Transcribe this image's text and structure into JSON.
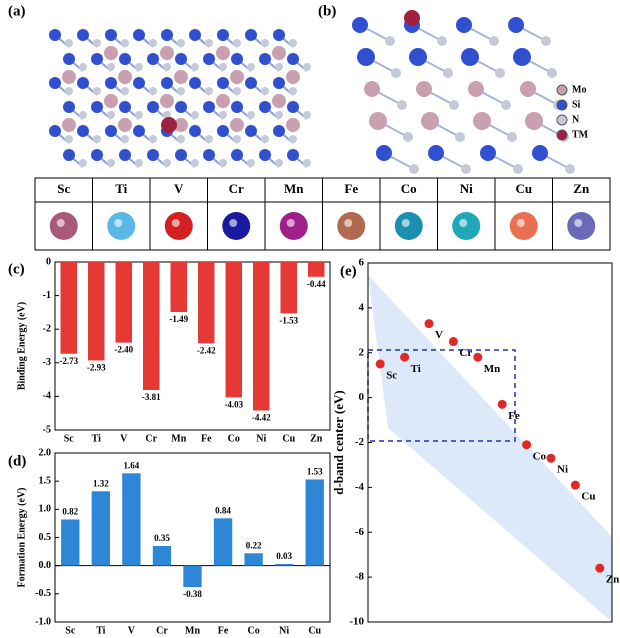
{
  "panels": {
    "a": "(a)",
    "b": "(b)"
  },
  "structure_legend": [
    {
      "name": "Mo",
      "color": "#c8a0b0"
    },
    {
      "name": "Si",
      "color": "#3050d0"
    },
    {
      "name": "N",
      "color": "#c4cad8"
    },
    {
      "name": "TM",
      "color": "#a02040"
    }
  ],
  "elements": [
    {
      "name": "Sc",
      "color": "#a85a78"
    },
    {
      "name": "Ti",
      "color": "#5ab8e8"
    },
    {
      "name": "V",
      "color": "#d42020"
    },
    {
      "name": "Cr",
      "color": "#1a1aa0"
    },
    {
      "name": "Mn",
      "color": "#a0208a"
    },
    {
      "name": "Fe",
      "color": "#b06a50"
    },
    {
      "name": "Co",
      "color": "#1a8fb0"
    },
    {
      "name": "Ni",
      "color": "#20a8b8"
    },
    {
      "name": "Cu",
      "color": "#e87050"
    },
    {
      "name": "Zn",
      "color": "#6a6ab8"
    }
  ],
  "chart_data": [
    {
      "type": "bar",
      "label": "(c)",
      "y_label": "Binding Energy (eV)",
      "color": "#e53935",
      "categories": [
        "Sc",
        "Ti",
        "V",
        "Cr",
        "Mn",
        "Fe",
        "Co",
        "Ni",
        "Cu",
        "Zn"
      ],
      "values": [
        -2.73,
        -2.93,
        -2.4,
        -3.81,
        -1.49,
        -2.42,
        -4.03,
        -4.42,
        -1.53,
        -0.44
      ],
      "value_labels": [
        "-2.73",
        "-2.93",
        "-2.40",
        "-3.81",
        "-1.49",
        "-2.42",
        "-4.03",
        "-4.42",
        "-1.53",
        "-0.44"
      ],
      "ylim": [
        -5,
        0
      ],
      "yticks": [
        0,
        -1,
        -2,
        -3,
        -4,
        -5
      ]
    },
    {
      "type": "bar",
      "label": "(d)",
      "y_label": "Formation Energy (eV)",
      "color": "#2e86d6",
      "categories": [
        "Sc",
        "Ti",
        "V",
        "Cr",
        "Mn",
        "Fe",
        "Co",
        "Ni",
        "Cu"
      ],
      "values": [
        0.82,
        1.32,
        1.64,
        0.35,
        -0.38,
        0.84,
        0.22,
        0.03,
        1.53
      ],
      "value_labels": [
        "0.82",
        "1.32",
        "1.64",
        "0.35",
        "-0.38",
        "0.84",
        "0.22",
        "0.03",
        "1.53"
      ],
      "ylim": [
        -1,
        2
      ],
      "yticks": [
        {
          "value": -1,
          "label": "-1.0"
        },
        {
          "value": -0.5,
          "label": "-0.5"
        },
        {
          "value": 0,
          "label": "0.0"
        },
        {
          "value": 0.5,
          "label": "0.5"
        },
        {
          "value": 1,
          "label": "1.0"
        },
        {
          "value": 1.5,
          "label": "1.5"
        },
        {
          "value": 2,
          "label": "2.0"
        }
      ]
    },
    {
      "type": "scatter",
      "label": "(e)",
      "y_label": "d-band center (eV)",
      "color": "#e02828",
      "categories": [
        "Sc",
        "Ti",
        "V",
        "Cr",
        "Mn",
        "Fe",
        "Co",
        "Ni",
        "Cu",
        "Zn"
      ],
      "values": [
        1.5,
        1.8,
        3.3,
        2.5,
        1.8,
        -0.3,
        -2.1,
        -2.7,
        -3.9,
        -7.6
      ],
      "ylim": [
        -10,
        6
      ],
      "yticks": [
        -10,
        -8,
        -6,
        -4,
        -2,
        0,
        2,
        4,
        6
      ]
    }
  ]
}
